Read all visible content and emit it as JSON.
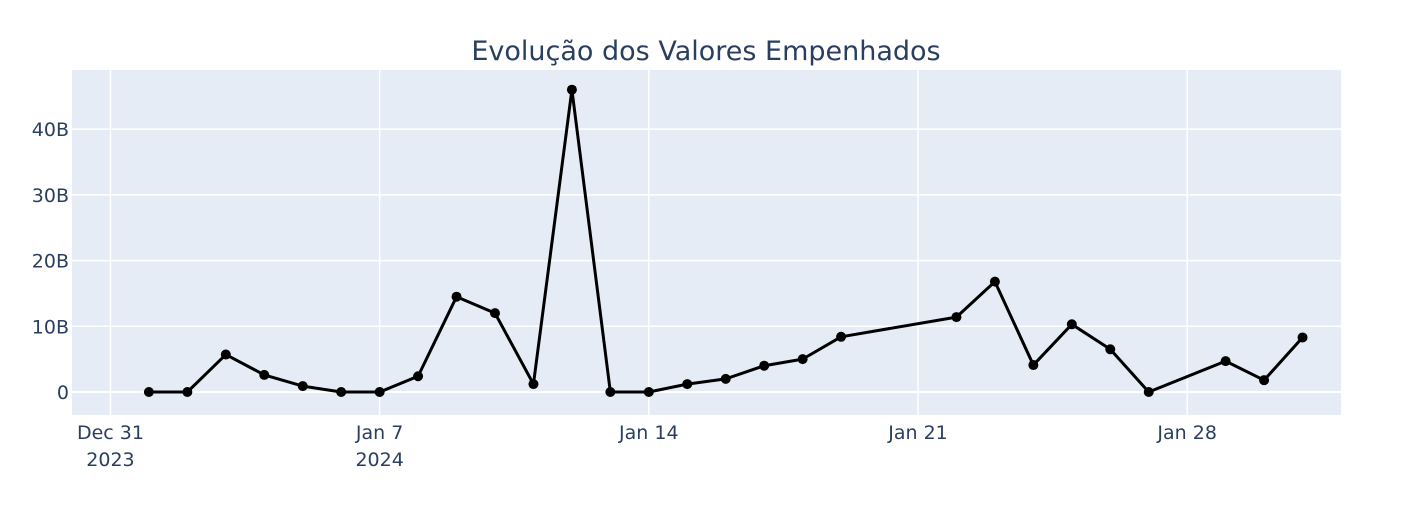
{
  "chart_data": {
    "type": "line",
    "title": "Evolução dos Valores Empenhados",
    "xlabel": "",
    "ylabel": "",
    "x_range": [
      "2023-12-30",
      "2024-02-01"
    ],
    "ylim": [
      -3.5,
      49
    ],
    "grid": true,
    "x_ticks": [
      {
        "date": "2023-12-31",
        "label": "Dec 31",
        "sublabel": "2023"
      },
      {
        "date": "2024-01-07",
        "label": "Jan 7",
        "sublabel": "2024"
      },
      {
        "date": "2024-01-14",
        "label": "Jan 14",
        "sublabel": ""
      },
      {
        "date": "2024-01-21",
        "label": "Jan 21",
        "sublabel": ""
      },
      {
        "date": "2024-01-28",
        "label": "Jan 28",
        "sublabel": ""
      }
    ],
    "y_ticks": [
      {
        "value": 0,
        "label": "0"
      },
      {
        "value": 10,
        "label": "10B"
      },
      {
        "value": 20,
        "label": "20B"
      },
      {
        "value": 30,
        "label": "30B"
      },
      {
        "value": 40,
        "label": "40B"
      }
    ],
    "y_unit": "billions",
    "series": [
      {
        "color": "#000000",
        "x": [
          "2024-01-01",
          "2024-01-02",
          "2024-01-03",
          "2024-01-04",
          "2024-01-05",
          "2024-01-06",
          "2024-01-07",
          "2024-01-08",
          "2024-01-09",
          "2024-01-10",
          "2024-01-11",
          "2024-01-12",
          "2024-01-13",
          "2024-01-14",
          "2024-01-15",
          "2024-01-16",
          "2024-01-17",
          "2024-01-18",
          "2024-01-19",
          "2024-01-22",
          "2024-01-23",
          "2024-01-24",
          "2024-01-25",
          "2024-01-26",
          "2024-01-27",
          "2024-01-29",
          "2024-01-30",
          "2024-01-31"
        ],
        "y": [
          0,
          0,
          5.7,
          2.6,
          0.9,
          0,
          0,
          2.4,
          14.5,
          12.0,
          1.2,
          46.0,
          0,
          0,
          1.2,
          2.0,
          4.0,
          5.0,
          8.4,
          11.4,
          16.8,
          4.1,
          10.3,
          6.5,
          0,
          4.7,
          1.8,
          8.3
        ]
      }
    ]
  },
  "colors": {
    "plot_bg": "#e5ecf6",
    "grid": "#ffffff",
    "text": "#2a3f5f",
    "line": "#000000"
  }
}
